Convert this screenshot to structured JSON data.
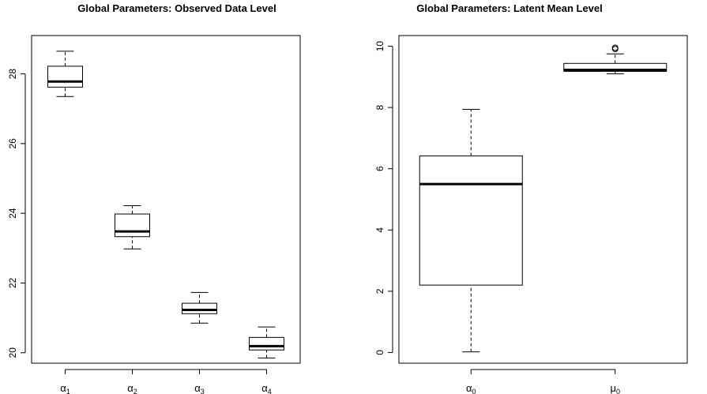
{
  "chart_data": [
    {
      "type": "boxplot",
      "title": "Global Parameters: Observed Data Level",
      "xlabel": "",
      "ylabel": "",
      "ylim": [
        19.7,
        29.1
      ],
      "yticks": [
        20,
        22,
        24,
        26,
        28
      ],
      "grid": false,
      "categories": [
        {
          "symbol": "α",
          "sub": "1"
        },
        {
          "symbol": "α",
          "sub": "2"
        },
        {
          "symbol": "α",
          "sub": "3"
        },
        {
          "symbol": "α",
          "sub": "4"
        }
      ],
      "boxes": [
        {
          "whisker_low": 27.35,
          "q1": 27.62,
          "median": 27.78,
          "q3": 28.22,
          "whisker_high": 28.65,
          "outliers": []
        },
        {
          "whisker_low": 22.98,
          "q1": 23.33,
          "median": 23.48,
          "q3": 23.98,
          "whisker_high": 24.22,
          "outliers": []
        },
        {
          "whisker_low": 20.85,
          "q1": 21.12,
          "median": 21.23,
          "q3": 21.42,
          "whisker_high": 21.73,
          "outliers": []
        },
        {
          "whisker_low": 19.85,
          "q1": 20.08,
          "median": 20.19,
          "q3": 20.44,
          "whisker_high": 20.74,
          "outliers": []
        }
      ]
    },
    {
      "type": "boxplot",
      "title": "Global Parameters: Latent Mean Level",
      "xlabel": "",
      "ylabel": "",
      "ylim": [
        -0.35,
        10.35
      ],
      "yticks": [
        0,
        2,
        4,
        6,
        8,
        10
      ],
      "grid": false,
      "categories": [
        {
          "symbol": "α",
          "sub": "0"
        },
        {
          "symbol": "μ",
          "sub": "0"
        }
      ],
      "boxes": [
        {
          "whisker_low": 0.02,
          "q1": 2.2,
          "median": 5.5,
          "q3": 6.42,
          "whisker_high": 7.94,
          "outliers": []
        },
        {
          "whisker_low": 9.1,
          "q1": 9.18,
          "median": 9.23,
          "q3": 9.44,
          "whisker_high": 9.75,
          "outliers": [
            9.91,
            9.95
          ]
        }
      ]
    }
  ]
}
